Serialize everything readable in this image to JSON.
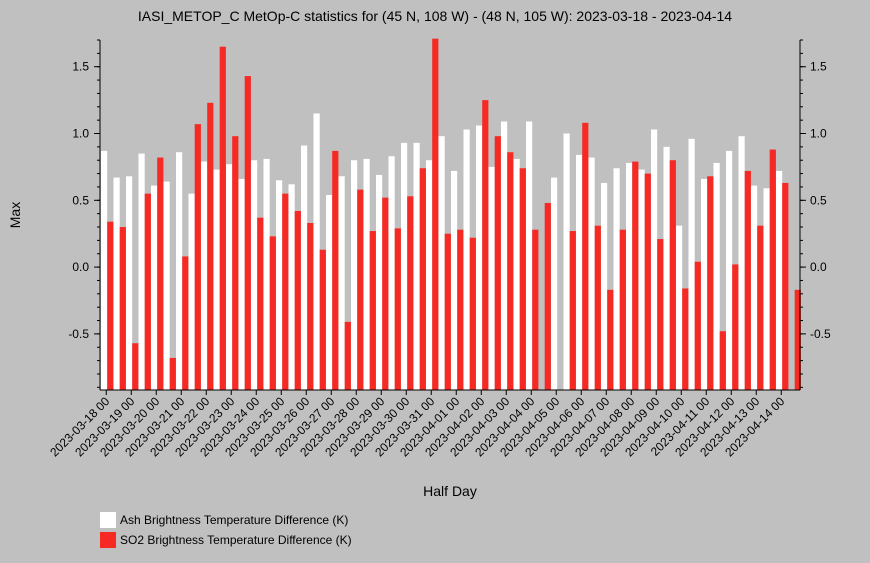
{
  "chart_data": {
    "type": "bar",
    "title": "IASI_METOP_C MetOp-C statistics for (45 N, 108 W) - (48 N, 105 W): 2023-03-18 - 2023-04-14",
    "xlabel": "Half Day",
    "ylabel": "Max",
    "ylim": [
      -0.92,
      1.7
    ],
    "yticks": [
      -0.5,
      0.0,
      0.5,
      1.0,
      1.5
    ],
    "ytick_labels": [
      "-0.5",
      "0.0",
      "0.5",
      "1.0",
      "1.5"
    ],
    "categories": [
      "2023-03-18 00",
      "2023-03-18 12",
      "2023-03-19 00",
      "2023-03-19 12",
      "2023-03-20 00",
      "2023-03-20 12",
      "2023-03-21 00",
      "2023-03-21 12",
      "2023-03-22 00",
      "2023-03-22 12",
      "2023-03-23 00",
      "2023-03-23 12",
      "2023-03-24 00",
      "2023-03-24 12",
      "2023-03-25 00",
      "2023-03-25 12",
      "2023-03-26 00",
      "2023-03-26 12",
      "2023-03-27 00",
      "2023-03-27 12",
      "2023-03-28 00",
      "2023-03-28 12",
      "2023-03-29 00",
      "2023-03-29 12",
      "2023-03-30 00",
      "2023-03-30 12",
      "2023-03-31 00",
      "2023-03-31 12",
      "2023-04-01 00",
      "2023-04-01 12",
      "2023-04-02 00",
      "2023-04-02 12",
      "2023-04-03 00",
      "2023-04-03 12",
      "2023-04-04 00",
      "2023-04-04 12",
      "2023-04-05 00",
      "2023-04-05 12",
      "2023-04-06 00",
      "2023-04-06 12",
      "2023-04-07 00",
      "2023-04-07 12",
      "2023-04-08 00",
      "2023-04-08 12",
      "2023-04-09 00",
      "2023-04-09 12",
      "2023-04-10 00",
      "2023-04-10 12",
      "2023-04-11 00",
      "2023-04-11 12",
      "2023-04-12 00",
      "2023-04-12 12",
      "2023-04-13 00",
      "2023-04-13 12",
      "2023-04-14 00",
      "2023-04-14 12"
    ],
    "tick_labels": [
      "2023-03-18 00",
      "2023-03-19 00",
      "2023-03-20 00",
      "2023-03-21 00",
      "2023-03-22 00",
      "2023-03-23 00",
      "2023-03-24 00",
      "2023-03-25 00",
      "2023-03-26 00",
      "2023-03-27 00",
      "2023-03-28 00",
      "2023-03-29 00",
      "2023-03-30 00",
      "2023-03-31 00",
      "2023-04-01 00",
      "2023-04-02 00",
      "2023-04-03 00",
      "2023-04-04 00",
      "2023-04-05 00",
      "2023-04-06 00",
      "2023-04-07 00",
      "2023-04-08 00",
      "2023-04-09 00",
      "2023-04-10 00",
      "2023-04-11 00",
      "2023-04-12 00",
      "2023-04-13 00",
      "2023-04-14 00"
    ],
    "series": [
      {
        "name": "Ash Brightness Temperature Difference (K)",
        "color": "#ffffff",
        "values": [
          0.87,
          0.67,
          0.68,
          0.85,
          0.61,
          0.64,
          0.86,
          0.55,
          0.79,
          0.73,
          0.77,
          0.66,
          0.8,
          0.81,
          0.65,
          0.62,
          0.91,
          1.15,
          0.54,
          0.68,
          0.8,
          0.81,
          0.69,
          0.83,
          0.93,
          0.93,
          0.8,
          0.98,
          0.72,
          1.03,
          1.06,
          0.75,
          1.09,
          0.81,
          1.09,
          null,
          0.67,
          1.0,
          0.84,
          0.82,
          0.63,
          0.74,
          0.78,
          0.73,
          1.03,
          0.9,
          0.31,
          0.96,
          0.66,
          0.78,
          0.87,
          0.98,
          0.61,
          0.59,
          0.72,
          null
        ]
      },
      {
        "name": "SO2 Brightness Temperature Difference (K)",
        "color": "#f52a24",
        "values": [
          0.34,
          0.3,
          -0.57,
          0.55,
          0.82,
          -0.68,
          0.08,
          1.07,
          1.23,
          1.65,
          0.98,
          1.43,
          0.37,
          0.23,
          0.55,
          0.42,
          0.33,
          0.13,
          0.87,
          -0.41,
          0.58,
          0.27,
          0.52,
          0.29,
          0.53,
          0.74,
          1.71,
          0.25,
          0.28,
          0.22,
          1.25,
          0.98,
          0.86,
          0.74,
          0.28,
          0.48,
          null,
          0.27,
          1.08,
          0.31,
          -0.17,
          0.28,
          0.79,
          0.7,
          0.21,
          0.8,
          -0.16,
          0.04,
          0.68,
          -0.48,
          0.02,
          0.72,
          0.31,
          0.88,
          0.63,
          -0.17
        ]
      }
    ],
    "grid": false,
    "legend_position": "bottom-left"
  }
}
